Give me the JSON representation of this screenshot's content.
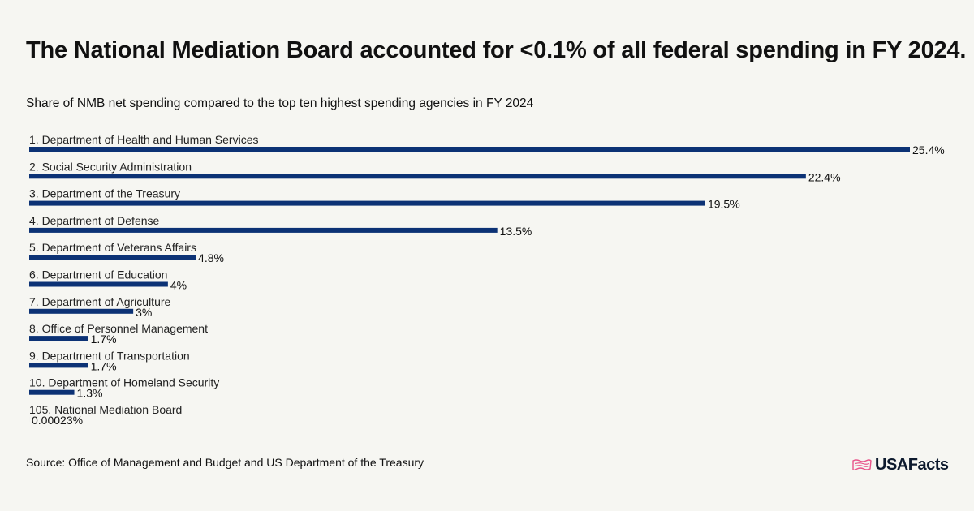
{
  "header": {
    "title": "The National Mediation Board accounted for <0.1% of all federal spending in FY 2024.",
    "subtitle": "Share of NMB net spending compared to the top ten highest spending agencies in FY 2024"
  },
  "footer": {
    "source": "Source: Office of Management and Budget and US Department of the Treasury",
    "logo_text": "USAFacts",
    "logo_icon": "usa-map-flag-icon"
  },
  "colors": {
    "bar": "#0c3275",
    "background": "#f6f6f2",
    "text": "#111111",
    "logo_accent": "#e8548a"
  },
  "chart_data": {
    "type": "bar",
    "orientation": "horizontal",
    "title": "The National Mediation Board accounted for <0.1% of all federal spending in FY 2024.",
    "subtitle": "Share of NMB net spending compared to the top ten highest spending agencies in FY 2024",
    "categories": [
      "1. Department of Health and Human Services",
      "2. Social Security Administration",
      "3. Department of the Treasury",
      "4. Department of Defense",
      "5. Department of Veterans Affairs",
      "6. Department of Education",
      "7. Department of Agriculture",
      "8. Office of Personnel Management",
      "9. Department of Transportation",
      "10. Department of Homeland Security",
      "105. National Mediation Board"
    ],
    "values": [
      25.4,
      22.4,
      19.5,
      13.5,
      4.8,
      4,
      3,
      1.7,
      1.7,
      1.3,
      0.00023
    ],
    "value_labels": [
      "25.4%",
      "22.4%",
      "19.5%",
      "13.5%",
      "4.8%",
      "4%",
      "3%",
      "1.7%",
      "1.7%",
      "1.3%",
      "0.00023%"
    ],
    "unit": "%",
    "xlim": [
      0,
      25.4
    ],
    "grid": false,
    "legend": "none"
  }
}
